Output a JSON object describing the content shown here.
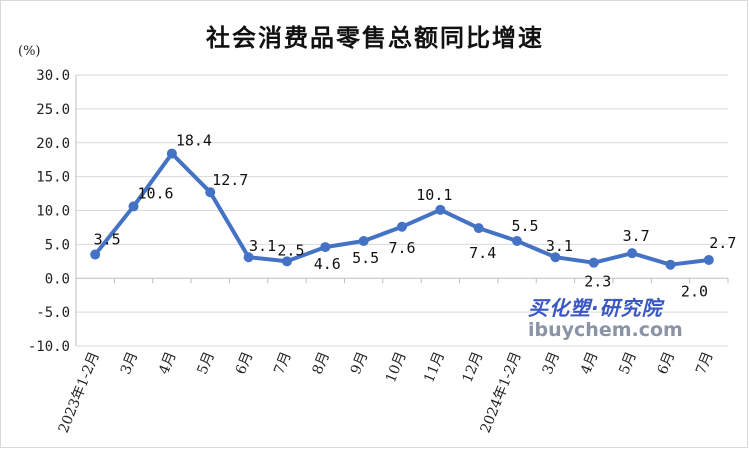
{
  "title": "社会消费品零售总额同比增速",
  "unit": "(%)",
  "watermark": {
    "cn": "买化塑·研究院",
    "en": "ibuychem.com"
  },
  "colors": {
    "line": "#4472c4",
    "grid": "#d9d9d9",
    "axis": "#bfbfbf",
    "wm_cn": "#3a57c4",
    "wm_en": "#8b93a6"
  },
  "chart_data": {
    "type": "line",
    "title": "社会消费品零售总额同比增速",
    "ylabel": "(%)",
    "ylim": [
      -10,
      30
    ],
    "yticks": [
      "30.0",
      "25.0",
      "20.0",
      "15.0",
      "10.0",
      "5.0",
      "0.0",
      "-5.0",
      "-10.0"
    ],
    "grid": true,
    "categories": [
      "2023年1-2月",
      "3月",
      "4月",
      "5月",
      "6月",
      "7月",
      "8月",
      "9月",
      "10月",
      "11月",
      "12月",
      "2024年1-2月",
      "3月",
      "4月",
      "5月",
      "6月",
      "7月"
    ],
    "series": [
      {
        "values": [
          3.5,
          10.6,
          18.4,
          12.7,
          3.1,
          2.5,
          4.6,
          5.5,
          7.6,
          10.1,
          7.4,
          5.5,
          3.1,
          2.3,
          3.7,
          2.0,
          2.7
        ]
      }
    ],
    "data_labels": [
      "3.5",
      "10.6",
      "18.4",
      "12.7",
      "3.1",
      "2.5",
      "4.6",
      "5.5",
      "7.6",
      "10.1",
      "7.4",
      "5.5",
      "3.1",
      "2.3",
      "3.7",
      "2.0",
      "2.7"
    ]
  }
}
